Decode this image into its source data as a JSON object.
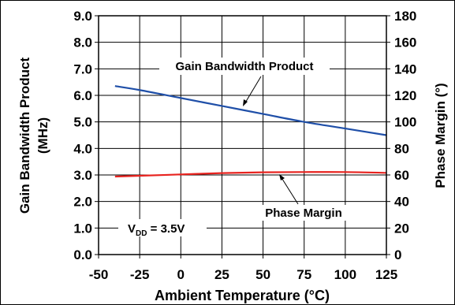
{
  "chart_data": {
    "type": "line",
    "xlabel": "Ambient Temperature (°C)",
    "ylabel": "Gain Bandwidth Product",
    "ylabel_unit": "(MHz)",
    "y2label": "Phase Margin (°)",
    "xlim": [
      -50,
      125
    ],
    "ylim": [
      0,
      9
    ],
    "y2lim": [
      0,
      180
    ],
    "x_ticks": [
      "-50",
      "-25",
      "0",
      "25",
      "50",
      "75",
      "100",
      "125"
    ],
    "y_ticks": [
      "0.0",
      "1.0",
      "2.0",
      "3.0",
      "4.0",
      "5.0",
      "6.0",
      "7.0",
      "8.0",
      "9.0"
    ],
    "y2_ticks": [
      "0",
      "20",
      "40",
      "60",
      "80",
      "100",
      "120",
      "140",
      "160",
      "180"
    ],
    "grid": true,
    "colors": {
      "gain": "#1f4fa8",
      "phase": "#e8231f"
    },
    "series": [
      {
        "name": "Gain Bandwidth Product",
        "axis": "left",
        "x": [
          -40,
          -25,
          0,
          25,
          50,
          75,
          100,
          125
        ],
        "y": [
          6.35,
          6.2,
          5.9,
          5.6,
          5.3,
          5.0,
          4.75,
          4.5
        ]
      },
      {
        "name": "Phase Margin",
        "axis": "right",
        "x": [
          -40,
          -25,
          0,
          25,
          50,
          75,
          100,
          125
        ],
        "y": [
          58.8,
          59.4,
          60.4,
          61.4,
          62.0,
          62.2,
          62.2,
          61.6
        ]
      }
    ],
    "annotations": [
      {
        "text": "Gain Bandwidth Product",
        "target_series": 0
      },
      {
        "text": "Phase Margin",
        "target_series": 1
      },
      {
        "text": "V",
        "sub": "DD",
        "suffix": " = 3.5V"
      }
    ]
  }
}
